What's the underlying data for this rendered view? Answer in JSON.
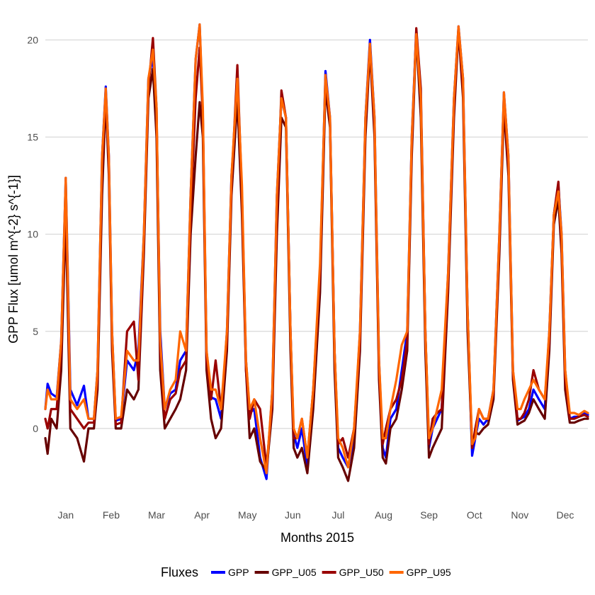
{
  "chart_data": {
    "type": "line",
    "title": "",
    "xlabel": "Months 2015",
    "ylabel": "GPP Flux [umol m^{-2} s^{-1}]",
    "x_ticks": [
      "Jan",
      "Feb",
      "Mar",
      "Apr",
      "May",
      "Jun",
      "Jul",
      "Aug",
      "Sep",
      "Oct",
      "Nov",
      "Dec"
    ],
    "y_ticks": [
      0,
      5,
      10,
      15,
      20
    ],
    "xlim": [
      0.55,
      12.5
    ],
    "ylim": [
      -3.65,
      21.4
    ],
    "grid": true,
    "legend": {
      "title": "Fluxes",
      "position": "bottom"
    },
    "x_unit": "month index (1 = Jan)",
    "series": [
      {
        "name": "GPP",
        "color": "#0000ff",
        "x": [
          0.55,
          0.6,
          0.68,
          0.8,
          0.9,
          1.0,
          1.1,
          1.25,
          1.4,
          1.5,
          1.62,
          1.7,
          1.8,
          1.88,
          1.95,
          2.02,
          2.1,
          2.22,
          2.35,
          2.5,
          2.6,
          2.72,
          2.82,
          2.92,
          3.0,
          3.08,
          3.18,
          3.3,
          3.42,
          3.52,
          3.65,
          3.75,
          3.86,
          3.95,
          4.02,
          4.1,
          4.2,
          4.3,
          4.42,
          4.55,
          4.65,
          4.78,
          4.88,
          4.97,
          5.05,
          5.15,
          5.28,
          5.42,
          5.55,
          5.65,
          5.75,
          5.85,
          5.95,
          6.02,
          6.1,
          6.2,
          6.32,
          6.45,
          6.6,
          6.72,
          6.82,
          6.92,
          7.0,
          7.1,
          7.22,
          7.35,
          7.48,
          7.6,
          7.7,
          7.8,
          7.9,
          7.98,
          8.05,
          8.15,
          8.28,
          8.4,
          8.52,
          8.62,
          8.72,
          8.82,
          8.92,
          9.0,
          9.08,
          9.18,
          9.28,
          9.42,
          9.55,
          9.65,
          9.75,
          9.85,
          9.95,
          10.02,
          10.1,
          10.2,
          10.3,
          10.42,
          10.55,
          10.65,
          10.75,
          10.85,
          10.95,
          11.02,
          11.1,
          11.2,
          11.3,
          11.42,
          11.55,
          11.65,
          11.75,
          11.85,
          11.92,
          12.0,
          12.1,
          12.2,
          12.3,
          12.42,
          12.5
        ],
        "values": [
          1.0,
          2.3,
          1.8,
          1.6,
          4.5,
          12.9,
          2.0,
          1.2,
          2.2,
          0.5,
          0.5,
          3.0,
          14.0,
          17.6,
          14.0,
          5.0,
          0.4,
          0.5,
          3.5,
          3.0,
          4.0,
          10.0,
          18.0,
          19.1,
          16.0,
          5.0,
          1.0,
          1.8,
          2.0,
          3.5,
          4.0,
          12.0,
          19.0,
          20.8,
          16.0,
          4.0,
          1.6,
          1.5,
          0.5,
          5.0,
          13.0,
          17.5,
          12.0,
          3.5,
          0.8,
          1.0,
          -1.5,
          -2.6,
          2.0,
          12.0,
          17.0,
          16.0,
          5.0,
          -0.3,
          -1.0,
          0.0,
          -2.0,
          1.5,
          8.0,
          18.4,
          16.0,
          4.0,
          -1.0,
          -1.5,
          -2.0,
          -0.5,
          5.0,
          16.0,
          20.0,
          16.0,
          3.5,
          -1.0,
          -1.5,
          0.5,
          1.0,
          3.0,
          5.0,
          15.0,
          20.5,
          17.0,
          5.0,
          -1.0,
          0.0,
          0.5,
          1.0,
          8.0,
          17.0,
          20.7,
          18.0,
          6.0,
          -1.4,
          -0.5,
          0.5,
          0.2,
          0.5,
          2.0,
          10.0,
          17.3,
          14.0,
          3.0,
          0.4,
          0.5,
          0.6,
          1.0,
          2.0,
          1.5,
          1.0,
          5.0,
          11.0,
          12.5,
          10.0,
          3.0,
          0.5,
          0.6,
          0.6,
          0.8,
          0.7
        ]
      },
      {
        "name": "GPP_U05",
        "color": "#660000",
        "x": [
          0.55,
          0.6,
          0.68,
          0.8,
          0.9,
          1.0,
          1.1,
          1.25,
          1.4,
          1.5,
          1.62,
          1.7,
          1.8,
          1.88,
          1.95,
          2.02,
          2.1,
          2.22,
          2.35,
          2.5,
          2.6,
          2.72,
          2.82,
          2.92,
          3.0,
          3.08,
          3.18,
          3.3,
          3.42,
          3.52,
          3.65,
          3.75,
          3.86,
          3.95,
          4.02,
          4.1,
          4.2,
          4.3,
          4.42,
          4.55,
          4.65,
          4.78,
          4.88,
          4.97,
          5.05,
          5.15,
          5.28,
          5.42,
          5.55,
          5.65,
          5.75,
          5.85,
          5.95,
          6.02,
          6.1,
          6.2,
          6.32,
          6.45,
          6.6,
          6.72,
          6.82,
          6.92,
          7.0,
          7.1,
          7.22,
          7.35,
          7.48,
          7.6,
          7.7,
          7.8,
          7.9,
          7.98,
          8.05,
          8.15,
          8.28,
          8.4,
          8.52,
          8.62,
          8.72,
          8.82,
          8.92,
          9.0,
          9.08,
          9.18,
          9.28,
          9.42,
          9.55,
          9.65,
          9.75,
          9.85,
          9.95,
          10.02,
          10.1,
          10.2,
          10.3,
          10.42,
          10.55,
          10.65,
          10.75,
          10.85,
          10.95,
          11.02,
          11.1,
          11.2,
          11.3,
          11.42,
          11.55,
          11.65,
          11.75,
          11.85,
          11.92,
          12.0,
          12.1,
          12.2,
          12.3,
          12.42,
          12.5
        ],
        "values": [
          -0.5,
          -1.3,
          0.5,
          0.0,
          3.0,
          11.0,
          0.0,
          -0.5,
          -1.7,
          0.0,
          0.0,
          2.0,
          12.0,
          17.0,
          13.0,
          4.0,
          0.0,
          0.0,
          2.0,
          1.5,
          2.0,
          9.0,
          17.0,
          18.5,
          15.0,
          3.0,
          0.0,
          0.5,
          1.0,
          1.5,
          3.0,
          10.0,
          14.0,
          16.8,
          15.0,
          3.0,
          0.5,
          -0.5,
          0.0,
          4.0,
          12.0,
          17.0,
          11.0,
          3.0,
          -0.5,
          0.0,
          -1.7,
          -2.2,
          1.0,
          10.0,
          16.0,
          15.5,
          4.0,
          -1.0,
          -1.5,
          -1.0,
          -2.3,
          1.0,
          7.0,
          17.5,
          15.5,
          3.0,
          -1.5,
          -2.0,
          -2.7,
          -1.0,
          4.0,
          15.0,
          19.5,
          15.0,
          2.5,
          -1.5,
          -1.8,
          0.0,
          0.5,
          2.0,
          4.0,
          14.0,
          20.3,
          16.0,
          4.0,
          -1.5,
          -1.0,
          -0.5,
          0.0,
          7.0,
          16.0,
          20.5,
          17.0,
          5.0,
          -1.0,
          -0.2,
          -0.3,
          0.0,
          0.2,
          1.5,
          9.0,
          16.5,
          13.0,
          2.5,
          0.2,
          0.3,
          0.4,
          0.8,
          1.5,
          1.0,
          0.5,
          4.0,
          10.5,
          11.8,
          9.0,
          2.0,
          0.3,
          0.3,
          0.4,
          0.5,
          0.5
        ]
      },
      {
        "name": "GPP_U50",
        "color": "#990000",
        "x": [
          0.55,
          0.6,
          0.68,
          0.8,
          0.9,
          1.0,
          1.1,
          1.25,
          1.4,
          1.5,
          1.62,
          1.7,
          1.8,
          1.88,
          1.95,
          2.02,
          2.1,
          2.22,
          2.35,
          2.5,
          2.6,
          2.72,
          2.82,
          2.92,
          3.0,
          3.08,
          3.18,
          3.3,
          3.42,
          3.52,
          3.65,
          3.75,
          3.86,
          3.95,
          4.02,
          4.1,
          4.2,
          4.3,
          4.42,
          4.55,
          4.65,
          4.78,
          4.88,
          4.97,
          5.05,
          5.15,
          5.28,
          5.42,
          5.55,
          5.65,
          5.75,
          5.85,
          5.95,
          6.02,
          6.1,
          6.2,
          6.32,
          6.45,
          6.6,
          6.72,
          6.82,
          6.92,
          7.0,
          7.1,
          7.22,
          7.35,
          7.48,
          7.6,
          7.7,
          7.8,
          7.9,
          7.98,
          8.05,
          8.15,
          8.28,
          8.4,
          8.52,
          8.62,
          8.72,
          8.82,
          8.92,
          9.0,
          9.08,
          9.18,
          9.28,
          9.42,
          9.55,
          9.65,
          9.75,
          9.85,
          9.95,
          10.02,
          10.1,
          10.2,
          10.3,
          10.42,
          10.55,
          10.65,
          10.75,
          10.85,
          10.95,
          11.02,
          11.1,
          11.2,
          11.3,
          11.42,
          11.55,
          11.65,
          11.75,
          11.85,
          11.92,
          12.0,
          12.1,
          12.2,
          12.3,
          12.42,
          12.5
        ],
        "values": [
          0.5,
          0.0,
          1.0,
          1.0,
          4.0,
          12.3,
          1.0,
          0.5,
          0.0,
          0.3,
          0.3,
          2.5,
          13.5,
          17.3,
          13.5,
          4.5,
          0.2,
          0.3,
          5.0,
          5.5,
          2.5,
          9.5,
          17.5,
          20.1,
          16.5,
          4.0,
          0.5,
          1.5,
          1.8,
          3.0,
          3.5,
          11.0,
          17.0,
          19.6,
          16.0,
          3.5,
          1.5,
          3.5,
          1.0,
          4.5,
          12.5,
          18.7,
          12.0,
          3.0,
          0.5,
          1.5,
          1.0,
          -2.0,
          1.5,
          11.0,
          17.4,
          16.0,
          5.0,
          -0.5,
          -0.5,
          0.5,
          -1.5,
          2.0,
          8.0,
          18.0,
          15.8,
          4.0,
          -0.8,
          -0.5,
          -1.5,
          0.0,
          4.5,
          15.5,
          19.8,
          15.5,
          3.0,
          -0.8,
          0.0,
          1.0,
          1.5,
          2.5,
          4.5,
          14.5,
          20.6,
          17.5,
          5.0,
          -0.8,
          0.5,
          0.8,
          1.0,
          7.5,
          16.5,
          20.6,
          17.5,
          6.0,
          -1.0,
          0.0,
          1.0,
          0.5,
          0.5,
          1.8,
          9.5,
          17.0,
          13.5,
          2.8,
          0.5,
          0.5,
          0.8,
          1.5,
          3.0,
          2.0,
          1.5,
          4.5,
          11.0,
          12.7,
          9.5,
          2.5,
          0.5,
          0.5,
          0.6,
          0.7,
          0.6
        ]
      },
      {
        "name": "GPP_U95",
        "color": "#ff6600",
        "x": [
          0.55,
          0.6,
          0.68,
          0.8,
          0.9,
          1.0,
          1.1,
          1.25,
          1.4,
          1.5,
          1.62,
          1.7,
          1.8,
          1.88,
          1.95,
          2.02,
          2.1,
          2.22,
          2.35,
          2.5,
          2.6,
          2.72,
          2.82,
          2.92,
          3.0,
          3.08,
          3.18,
          3.3,
          3.42,
          3.52,
          3.65,
          3.75,
          3.86,
          3.95,
          4.02,
          4.1,
          4.2,
          4.3,
          4.42,
          4.55,
          4.65,
          4.78,
          4.88,
          4.97,
          5.05,
          5.15,
          5.28,
          5.42,
          5.55,
          5.65,
          5.75,
          5.85,
          5.95,
          6.02,
          6.1,
          6.2,
          6.32,
          6.45,
          6.6,
          6.72,
          6.82,
          6.92,
          7.0,
          7.1,
          7.22,
          7.35,
          7.48,
          7.6,
          7.7,
          7.8,
          7.9,
          7.98,
          8.05,
          8.15,
          8.28,
          8.4,
          8.52,
          8.62,
          8.72,
          8.82,
          8.92,
          9.0,
          9.08,
          9.18,
          9.28,
          9.42,
          9.55,
          9.65,
          9.75,
          9.85,
          9.95,
          10.02,
          10.1,
          10.2,
          10.3,
          10.42,
          10.55,
          10.65,
          10.75,
          10.85,
          10.95,
          11.02,
          11.1,
          11.2,
          11.3,
          11.42,
          11.55,
          11.65,
          11.75,
          11.85,
          11.92,
          12.0,
          12.1,
          12.2,
          12.3,
          12.42,
          12.5
        ],
        "values": [
          1.0,
          2.0,
          1.5,
          1.5,
          4.5,
          12.9,
          1.5,
          1.0,
          1.5,
          0.5,
          0.5,
          3.0,
          14.0,
          17.5,
          14.0,
          5.0,
          0.5,
          0.6,
          4.0,
          3.5,
          3.5,
          10.0,
          18.0,
          19.5,
          16.5,
          4.5,
          1.0,
          2.0,
          2.5,
          5.0,
          4.0,
          12.0,
          19.0,
          20.8,
          16.5,
          4.0,
          2.0,
          2.0,
          1.0,
          5.0,
          13.0,
          18.0,
          12.5,
          3.5,
          1.0,
          1.5,
          -0.5,
          -2.3,
          2.0,
          12.0,
          17.0,
          16.0,
          5.0,
          0.0,
          -0.5,
          0.5,
          -1.5,
          2.0,
          8.5,
          18.2,
          16.0,
          4.0,
          -0.5,
          -1.0,
          -2.0,
          0.0,
          5.0,
          16.0,
          19.8,
          16.0,
          3.5,
          -0.5,
          -0.5,
          1.0,
          2.5,
          4.3,
          5.0,
          15.0,
          20.3,
          17.0,
          5.0,
          -0.5,
          0.0,
          1.0,
          2.0,
          8.0,
          17.0,
          20.7,
          18.0,
          6.0,
          -0.8,
          -0.5,
          1.0,
          0.5,
          0.5,
          2.0,
          10.0,
          17.3,
          14.0,
          3.0,
          1.0,
          1.0,
          1.5,
          2.0,
          2.5,
          2.0,
          1.5,
          5.0,
          11.0,
          12.2,
          10.0,
          3.0,
          0.8,
          0.8,
          0.7,
          0.9,
          0.8
        ]
      }
    ]
  }
}
